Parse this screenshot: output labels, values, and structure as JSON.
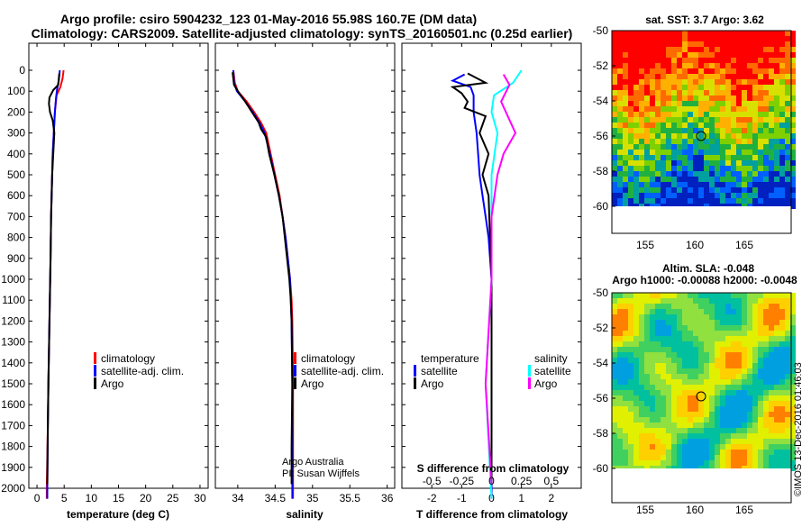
{
  "header": {
    "title_line1": "Argo profile: csiro 5904232_123 01-May-2016 55.98S 160.7E (DM data)",
    "title_line2": "Climatology: CARS2009. Satellite-adjusted climatology: synTS_20160501.nc (0.25d earlier)"
  },
  "colors": {
    "climatology": "#ff0000",
    "satellite_adj": "#0000ff",
    "argo": "#000000",
    "salinity_satellite": "#00ffff",
    "salinity_argo": "#ff00ff"
  },
  "depth_axis": {
    "ticks": [
      "0",
      "100",
      "200",
      "300",
      "400",
      "500",
      "600",
      "700",
      "800",
      "900",
      "1000",
      "1100",
      "1200",
      "1300",
      "1400",
      "1500",
      "1600",
      "1700",
      "1800",
      "1900",
      "2000"
    ],
    "ylim": [
      0,
      2050
    ]
  },
  "chart_data": [
    {
      "type": "line",
      "id": "temperature",
      "xlabel": "temperature (deg C)",
      "xlim": [
        -1.5,
        31.5
      ],
      "xticks": [
        "0",
        "5",
        "10",
        "15",
        "20",
        "25",
        "30"
      ],
      "ylim": [
        0,
        2050
      ],
      "legend": [
        "climatology",
        "satellite-adj. clim.",
        "Argo"
      ],
      "series": [
        {
          "name": "climatology",
          "color": "#ff0000",
          "points": [
            [
              4.9,
              0
            ],
            [
              4.7,
              40
            ],
            [
              4.3,
              80
            ],
            [
              3.6,
              120
            ],
            [
              3.3,
              200
            ],
            [
              3.1,
              300
            ],
            [
              2.9,
              400
            ],
            [
              2.8,
              500
            ],
            [
              2.6,
              700
            ],
            [
              2.5,
              900
            ],
            [
              2.3,
              1200
            ],
            [
              2.1,
              1500
            ],
            [
              2.0,
              1700
            ],
            [
              1.8,
              2000
            ],
            [
              1.8,
              2050
            ]
          ]
        },
        {
          "name": "satellite-adj. clim.",
          "color": "#0000ff",
          "points": [
            [
              4.2,
              0
            ],
            [
              4.0,
              50
            ],
            [
              3.7,
              90
            ],
            [
              3.5,
              130
            ],
            [
              3.3,
              200
            ],
            [
              3.1,
              300
            ],
            [
              2.9,
              400
            ],
            [
              2.8,
              500
            ],
            [
              2.6,
              700
            ],
            [
              2.5,
              900
            ],
            [
              2.3,
              1200
            ],
            [
              2.1,
              1500
            ],
            [
              2.0,
              1700
            ],
            [
              1.9,
              2000
            ],
            [
              1.9,
              2050
            ]
          ]
        },
        {
          "name": "Argo",
          "color": "#000000",
          "points": [
            [
              4.1,
              15
            ],
            [
              3.9,
              70
            ],
            [
              3.0,
              95
            ],
            [
              2.7,
              110
            ],
            [
              2.3,
              130
            ],
            [
              2.2,
              160
            ],
            [
              2.4,
              200
            ],
            [
              2.9,
              240
            ],
            [
              3.2,
              300
            ],
            [
              3.0,
              400
            ],
            [
              2.8,
              500
            ],
            [
              2.6,
              700
            ],
            [
              2.5,
              900
            ],
            [
              2.3,
              1200
            ],
            [
              2.1,
              1500
            ],
            [
              2.0,
              1700
            ],
            [
              1.9,
              1980
            ]
          ]
        }
      ]
    },
    {
      "type": "line",
      "id": "salinity",
      "xlabel": "salinity",
      "xlim": [
        33.7,
        36.1
      ],
      "xticks": [
        "34",
        "34.5",
        "35",
        "35.5",
        "36"
      ],
      "ylim": [
        0,
        2050
      ],
      "legend": [
        "climatology",
        "satellite-adj. clim.",
        "Argo"
      ],
      "series": [
        {
          "name": "climatology",
          "color": "#ff0000",
          "points": [
            [
              33.94,
              0
            ],
            [
              33.96,
              60
            ],
            [
              34.0,
              100
            ],
            [
              34.12,
              150
            ],
            [
              34.22,
              200
            ],
            [
              34.31,
              250
            ],
            [
              34.38,
              300
            ],
            [
              34.44,
              400
            ],
            [
              34.5,
              500
            ],
            [
              34.56,
              600
            ],
            [
              34.6,
              700
            ],
            [
              34.64,
              800
            ],
            [
              34.67,
              900
            ],
            [
              34.7,
              1000
            ],
            [
              34.72,
              1100
            ],
            [
              34.73,
              1200
            ],
            [
              34.74,
              1500
            ],
            [
              34.74,
              1800
            ],
            [
              34.74,
              2050
            ]
          ]
        },
        {
          "name": "satellite-adj. clim.",
          "color": "#0000ff",
          "points": [
            [
              33.94,
              0
            ],
            [
              33.95,
              60
            ],
            [
              33.99,
              100
            ],
            [
              34.1,
              150
            ],
            [
              34.2,
              200
            ],
            [
              34.29,
              250
            ],
            [
              34.36,
              300
            ],
            [
              34.43,
              400
            ],
            [
              34.49,
              500
            ],
            [
              34.55,
              600
            ],
            [
              34.6,
              700
            ],
            [
              34.64,
              800
            ],
            [
              34.67,
              900
            ],
            [
              34.7,
              1000
            ],
            [
              34.71,
              1100
            ],
            [
              34.72,
              1200
            ],
            [
              34.73,
              1500
            ],
            [
              34.73,
              1800
            ],
            [
              34.73,
              2050
            ]
          ]
        },
        {
          "name": "Argo",
          "color": "#000000",
          "points": [
            [
              33.93,
              10
            ],
            [
              33.95,
              70
            ],
            [
              34.0,
              100
            ],
            [
              34.1,
              150
            ],
            [
              34.19,
              200
            ],
            [
              34.28,
              250
            ],
            [
              34.31,
              280
            ],
            [
              34.38,
              320
            ],
            [
              34.42,
              400
            ],
            [
              34.49,
              500
            ],
            [
              34.55,
              600
            ],
            [
              34.6,
              700
            ],
            [
              34.63,
              800
            ],
            [
              34.66,
              900
            ],
            [
              34.69,
              1000
            ],
            [
              34.71,
              1100
            ],
            [
              34.72,
              1200
            ],
            [
              34.73,
              1500
            ],
            [
              34.72,
              1800
            ],
            [
              34.72,
              1980
            ]
          ]
        }
      ],
      "credit_line1": "Argo Australia",
      "credit_line2": "PI: Susan Wijffels"
    },
    {
      "type": "line",
      "id": "difference",
      "xlabel": "T difference from climatology",
      "xlabel_top": "S difference from climatology",
      "xlim": [
        -3,
        3
      ],
      "xticks": [
        "-2",
        "-1",
        "0",
        "1",
        "2"
      ],
      "xticks_top": [
        "-0.5",
        "-0.25",
        "0",
        "0.25",
        "0.5"
      ],
      "ylim": [
        0,
        2050
      ],
      "legend_left_title": "temperature",
      "legend_left": [
        "satellite",
        "Argo"
      ],
      "legend_right_title": "salinity",
      "legend_right": [
        "satellite",
        "Argo"
      ],
      "series": [
        {
          "name": "T satellite",
          "color": "#0000ff",
          "points": [
            [
              -0.9,
              20
            ],
            [
              -1.3,
              50
            ],
            [
              -0.7,
              80
            ],
            [
              -0.6,
              120
            ],
            [
              -0.6,
              200
            ],
            [
              -0.5,
              300
            ],
            [
              -0.45,
              400
            ],
            [
              -0.4,
              500
            ],
            [
              -0.3,
              600
            ],
            [
              -0.2,
              700
            ],
            [
              -0.1,
              800
            ],
            [
              0,
              1000
            ],
            [
              0,
              2050
            ]
          ]
        },
        {
          "name": "T Argo",
          "color": "#000000",
          "points": [
            [
              -0.8,
              15
            ],
            [
              -0.2,
              60
            ],
            [
              -1.3,
              80
            ],
            [
              -1.0,
              110
            ],
            [
              -0.8,
              150
            ],
            [
              -0.9,
              180
            ],
            [
              -0.2,
              220
            ],
            [
              -0.4,
              300
            ],
            [
              -0.1,
              400
            ],
            [
              -0.3,
              500
            ],
            [
              -0.1,
              600
            ],
            [
              -0.05,
              800
            ],
            [
              0,
              1000
            ],
            [
              0,
              1980
            ]
          ]
        },
        {
          "name": "S satellite",
          "color": "#00ffff",
          "points": [
            [
              0.25,
              0
            ],
            [
              0.18,
              60
            ],
            [
              0.02,
              120
            ],
            [
              0.0,
              200
            ],
            [
              0.05,
              300
            ],
            [
              0.0,
              500
            ],
            [
              0.0,
              1000
            ],
            [
              -0.05,
              1500
            ],
            [
              0,
              2050
            ]
          ]
        },
        {
          "name": "S Argo",
          "color": "#ff00ff",
          "points": [
            [
              0.1,
              20
            ],
            [
              0.15,
              70
            ],
            [
              0.08,
              150
            ],
            [
              0.2,
              300
            ],
            [
              0.1,
              400
            ],
            [
              0.05,
              500
            ],
            [
              0.0,
              700
            ],
            [
              0.0,
              1000
            ],
            [
              -0.05,
              1500
            ],
            [
              0,
              1980
            ]
          ]
        }
      ]
    }
  ],
  "map_sst": {
    "title": "sat. SST: 3.7 Argo: 3.62",
    "lat_ticks": [
      "-50",
      "-52",
      "-54",
      "-56",
      "-58",
      "-60"
    ],
    "lon_ticks": [
      "155",
      "160",
      "165"
    ]
  },
  "map_sla": {
    "title_line1": "Altim. SLA: -0.048",
    "title_line2": "Argo h1000: -0.00088 h2000: -0.0048",
    "lat_ticks": [
      "-50",
      "-52",
      "-54",
      "-56",
      "-58",
      "-60"
    ],
    "lon_ticks": [
      "155",
      "160",
      "165"
    ]
  },
  "footer": {
    "stamp": "©IMOS 13-Dec-2016 01:46:03"
  }
}
